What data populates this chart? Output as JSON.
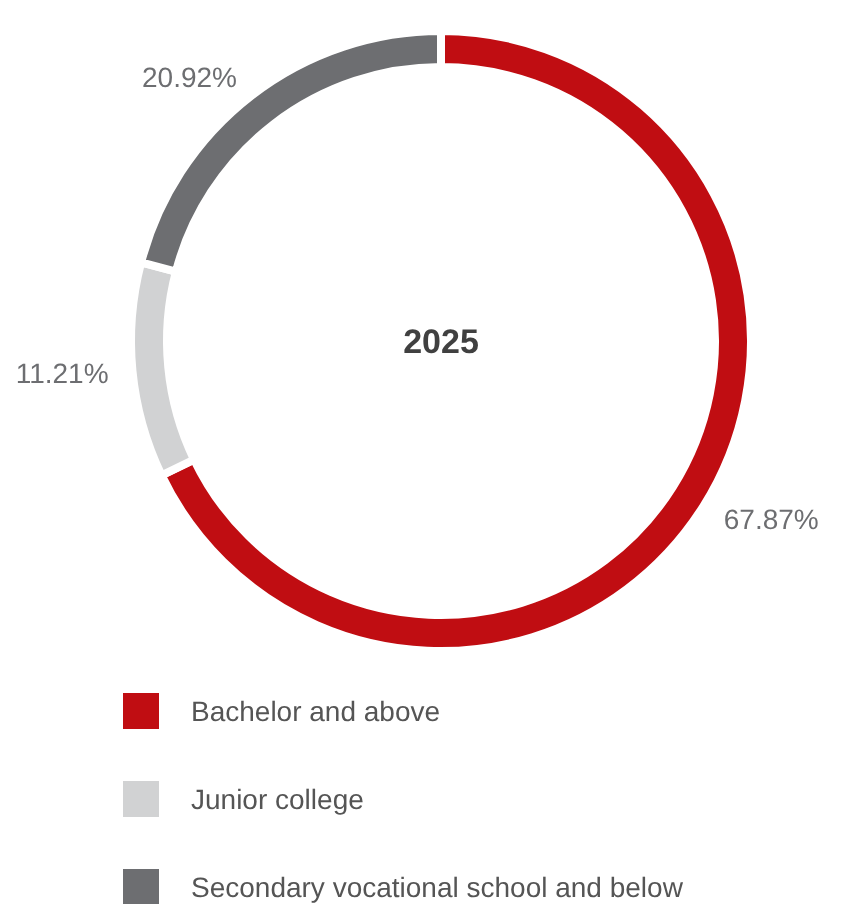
{
  "chart_data": {
    "type": "donut",
    "title": "2025",
    "categories": [
      "Bachelor and above",
      "Junior college",
      "Secondary vocational school and below"
    ],
    "values": [
      67.87,
      11.21,
      20.92
    ],
    "colors": [
      "#c00d12",
      "#d1d2d3",
      "#6d6e71"
    ],
    "value_labels": [
      "67.87%",
      "11.21%",
      "20.92%"
    ],
    "legend": "bottom"
  }
}
